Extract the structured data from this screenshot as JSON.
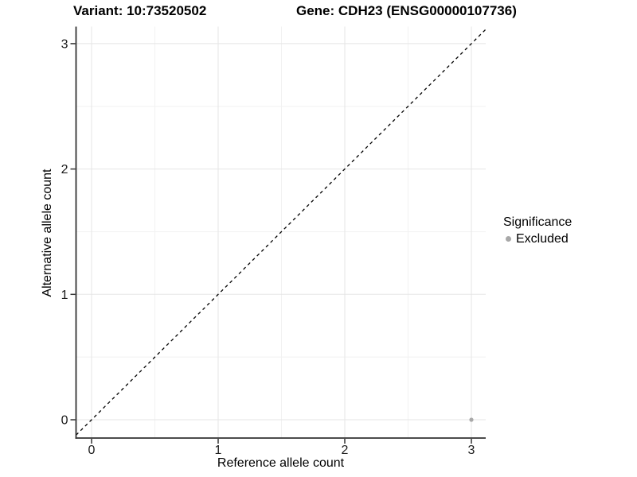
{
  "titles": {
    "variant": "Variant: 10:73520502",
    "gene": "Gene: CDH23 (ENSG00000107736)"
  },
  "chart_data": {
    "type": "scatter",
    "xlabel": "Reference allele count",
    "ylabel": "Alternative allele count",
    "x_ticks": [
      0,
      1,
      2,
      3
    ],
    "y_ticks": [
      0,
      1,
      2,
      3
    ],
    "xlim": [
      -0.12,
      3.12
    ],
    "ylim": [
      -0.15,
      3.13
    ],
    "grid": "major and minor light grey gridlines on white background",
    "legend_position": "right-center",
    "reference_line": {
      "type": "identity y=x",
      "style": "dashed",
      "color": "#000000"
    },
    "series": [
      {
        "name": "Excluded",
        "color": "#a8a8a8",
        "points": [
          [
            3,
            0
          ]
        ]
      }
    ]
  },
  "legend": {
    "title": "Significance",
    "items": [
      {
        "label": "Excluded",
        "color": "#a8a8a8"
      }
    ]
  },
  "colors": {
    "axis_line": "#333333",
    "tick_text": "#1a1a1a",
    "grid_major": "#e5e5e5",
    "grid_minor": "#f2f2f2",
    "background": "#ffffff"
  }
}
